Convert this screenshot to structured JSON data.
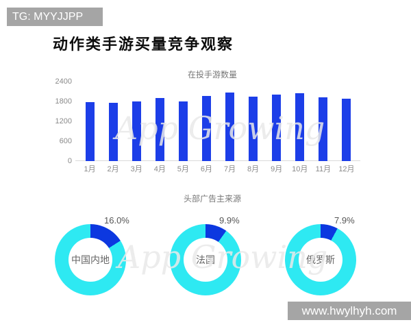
{
  "header": {
    "tg_badge": "TG: MYYJJPP",
    "title": "动作类手游买量竞争观察"
  },
  "watermark": {
    "text": "App Growing"
  },
  "footer": {
    "site": "www.hwylhyh.com"
  },
  "colors": {
    "badge_bg": "#a5a5a5",
    "bar_blue": "#1c3ee8",
    "donut_ring_cyan": "#2ee9f2",
    "donut_slice_blue": "#0c38e0",
    "axis_text_gray": "#8a8a8a",
    "chart_title_gray": "#777777"
  },
  "chart_data": [
    {
      "type": "bar",
      "title": "在投手游数量",
      "categories": [
        "1月",
        "2月",
        "3月",
        "4月",
        "5月",
        "6月",
        "7月",
        "8月",
        "9月",
        "10月",
        "11月",
        "12月"
      ],
      "values": [
        1775,
        1750,
        1810,
        1905,
        1795,
        1960,
        2075,
        1955,
        2000,
        2055,
        1930,
        1885
      ],
      "xlabel": "",
      "ylabel": "",
      "ylim": [
        0,
        2400
      ],
      "yticks": [
        0,
        600,
        1200,
        1800,
        2400
      ],
      "grid": false,
      "legend": false,
      "bar_color": "#1c3ee8"
    },
    {
      "type": "pie",
      "style": "donut",
      "title": "头部广告主来源",
      "slice_color": "#0c38e0",
      "ring_color": "#2ee9f2",
      "donuts": [
        {
          "label": "中国内地",
          "value": 16.0,
          "display": "16.0%"
        },
        {
          "label": "法国",
          "value": 9.9,
          "display": "9.9%"
        },
        {
          "label": "俄罗斯",
          "value": 7.9,
          "display": "7.9%"
        }
      ]
    }
  ]
}
